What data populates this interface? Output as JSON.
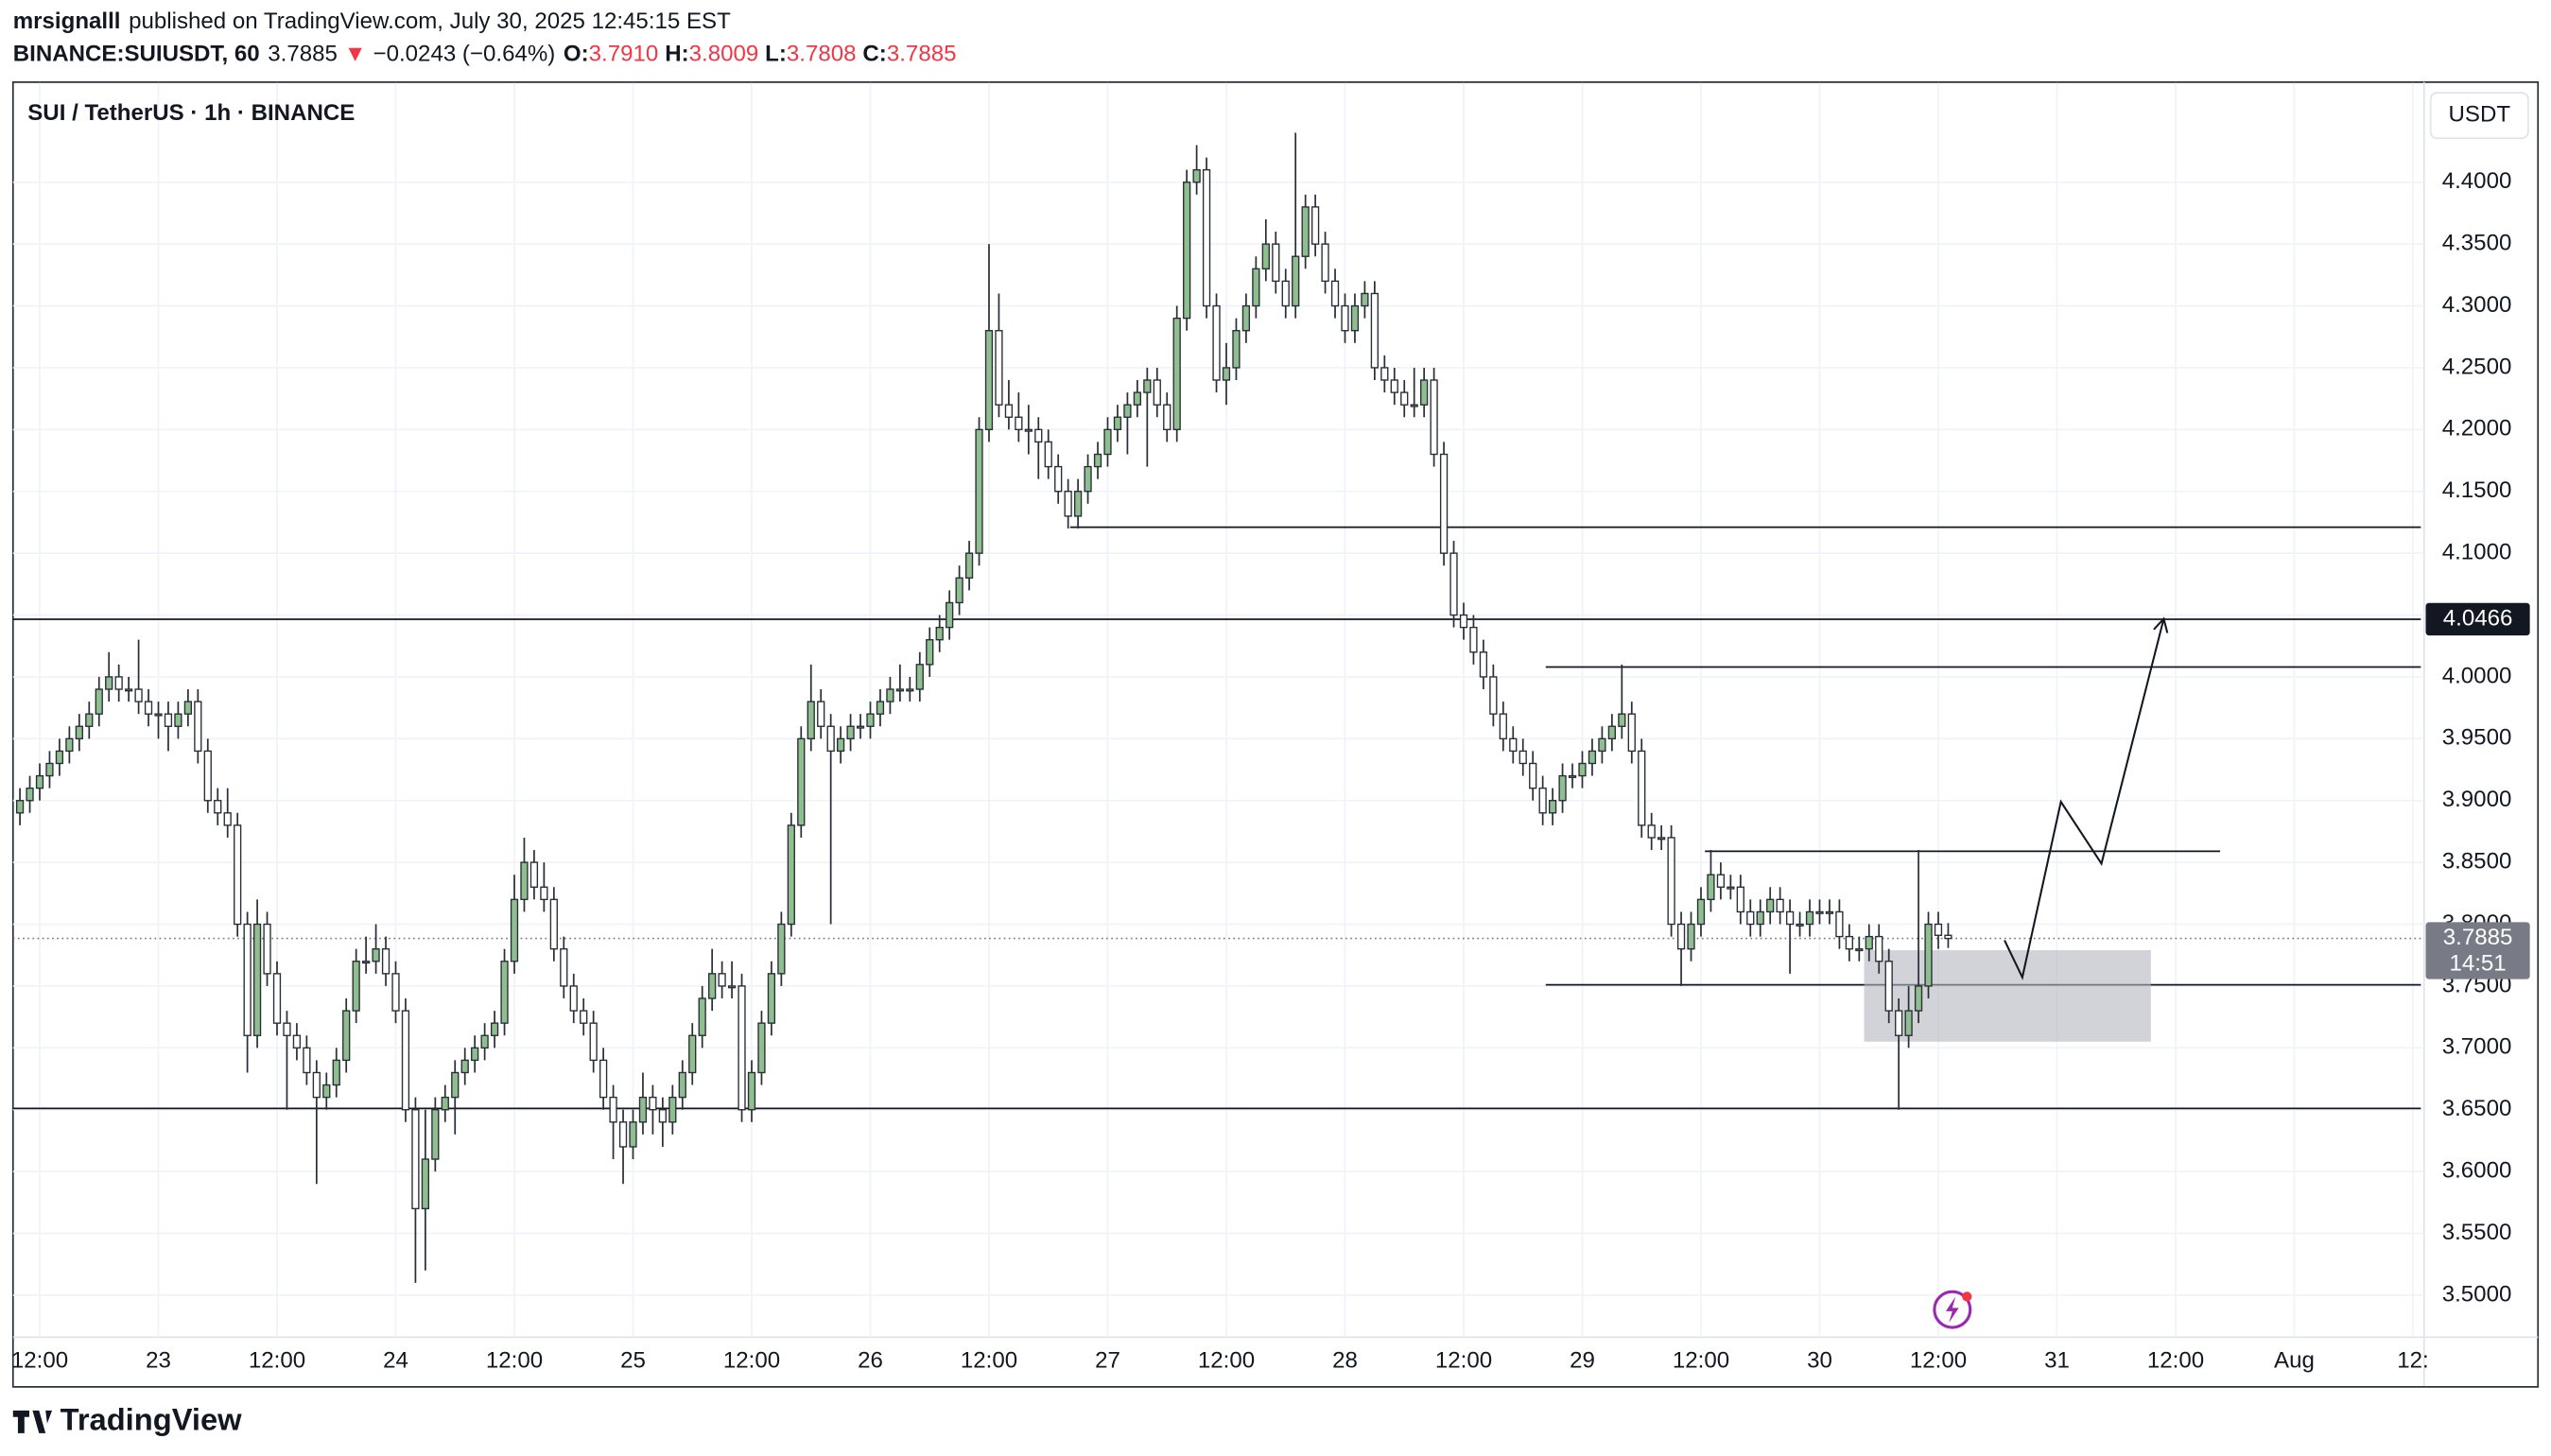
{
  "header": {
    "author": "mrsignalll",
    "published": "published on TradingView.com, July 30, 2025 12:45:15 EST",
    "symbol": "BINANCE:SUIUSDT, 60",
    "last": "3.7885",
    "arrow": "▼",
    "change": "−0.0243 (−0.64%)",
    "o_label": "O:",
    "o": "3.7910",
    "h_label": "H:",
    "h": "3.8009",
    "l_label": "L:",
    "l": "3.7808",
    "c_label": "C:",
    "c": "3.7885"
  },
  "brand": "TradingView",
  "chart_data": {
    "type": "candlestick",
    "title": "SUI / TetherUS · 1h · BINANCE",
    "currency": "USDT",
    "countdown": "14:51",
    "up_color": "#8fbf8f",
    "down_color": "#ffffff",
    "wick_color": "#2a2e39",
    "ylim": [
      3.466,
      4.475
    ],
    "yticks": [
      {
        "value": 3.5,
        "label": "3.5000"
      },
      {
        "value": 3.55,
        "label": "3.5500"
      },
      {
        "value": 3.6,
        "label": "3.6000"
      },
      {
        "value": 3.65,
        "label": "3.6500"
      },
      {
        "value": 3.7,
        "label": "3.7000"
      },
      {
        "value": 3.75,
        "label": "3.7500"
      },
      {
        "value": 3.8,
        "label": "3.8000"
      },
      {
        "value": 3.85,
        "label": "3.8500"
      },
      {
        "value": 3.9,
        "label": "3.9000"
      },
      {
        "value": 3.95,
        "label": "3.9500"
      },
      {
        "value": 4.0,
        "label": "4.0000"
      },
      {
        "value": 4.05,
        "label": "4.0500"
      },
      {
        "value": 4.1,
        "label": "4.1000"
      },
      {
        "value": 4.15,
        "label": "4.1500"
      },
      {
        "value": 4.2,
        "label": "4.2000"
      },
      {
        "value": 4.25,
        "label": "4.2500"
      },
      {
        "value": 4.3,
        "label": "4.3000"
      },
      {
        "value": 4.35,
        "label": "4.3500"
      },
      {
        "value": 4.4,
        "label": "4.4000"
      }
    ],
    "xlim": [
      -0.7,
      242.8
    ],
    "xticks": [
      {
        "value": 2,
        "label": "12:00"
      },
      {
        "value": 14,
        "label": "23"
      },
      {
        "value": 26,
        "label": "12:00"
      },
      {
        "value": 38,
        "label": "24"
      },
      {
        "value": 50,
        "label": "12:00"
      },
      {
        "value": 62,
        "label": "25"
      },
      {
        "value": 74,
        "label": "12:00"
      },
      {
        "value": 86,
        "label": "26"
      },
      {
        "value": 98,
        "label": "12:00"
      },
      {
        "value": 110,
        "label": "27"
      },
      {
        "value": 122,
        "label": "12:00"
      },
      {
        "value": 134,
        "label": "28"
      },
      {
        "value": 146,
        "label": "12:00"
      },
      {
        "value": 158,
        "label": "29"
      },
      {
        "value": 170,
        "label": "12:00"
      },
      {
        "value": 182,
        "label": "30"
      },
      {
        "value": 194,
        "label": "12:00"
      },
      {
        "value": 206,
        "label": "31"
      },
      {
        "value": 218,
        "label": "12:00"
      },
      {
        "value": 230,
        "label": "Aug"
      },
      {
        "value": 242,
        "label": "12:"
      }
    ],
    "grid": true,
    "last_price": 3.7885,
    "marked_price": 4.0466,
    "hlines": [
      {
        "price": 4.121,
        "x0": 106.2,
        "x1": 242.8
      },
      {
        "price": 4.0466,
        "x0": -0.7,
        "x1": 242.8
      },
      {
        "price": 4.008,
        "x0": 154.3,
        "x1": 242.8
      },
      {
        "price": 3.859,
        "x0": 170.4,
        "x1": 222.5
      },
      {
        "price": 3.751,
        "x0": 154.3,
        "x1": 242.8
      },
      {
        "price": 3.651,
        "x0": -0.7,
        "x1": 242.8
      }
    ],
    "zone": {
      "top": 3.779,
      "bottom": 3.705,
      "x0": 186.5,
      "x1": 215.5
    },
    "projection": {
      "x": [
        200.7,
        202.5,
        206.4,
        210.5,
        216.8
      ],
      "y": [
        3.787,
        3.757,
        3.899,
        3.849,
        4.047
      ]
    },
    "ohlc": [
      [
        3.89,
        3.91,
        3.88,
        3.9
      ],
      [
        3.9,
        3.92,
        3.89,
        3.91
      ],
      [
        3.91,
        3.93,
        3.9,
        3.92
      ],
      [
        3.92,
        3.94,
        3.91,
        3.93
      ],
      [
        3.93,
        3.95,
        3.92,
        3.94
      ],
      [
        3.94,
        3.96,
        3.93,
        3.95
      ],
      [
        3.95,
        3.97,
        3.94,
        3.96
      ],
      [
        3.96,
        3.98,
        3.95,
        3.97
      ],
      [
        3.97,
        4.0,
        3.96,
        3.99
      ],
      [
        3.99,
        4.02,
        3.98,
        4.0
      ],
      [
        4.0,
        4.01,
        3.98,
        3.99
      ],
      [
        3.99,
        4.0,
        3.98,
        3.99
      ],
      [
        3.99,
        4.03,
        3.97,
        3.98
      ],
      [
        3.98,
        3.99,
        3.96,
        3.97
      ],
      [
        3.97,
        3.98,
        3.95,
        3.97
      ],
      [
        3.97,
        3.98,
        3.94,
        3.96
      ],
      [
        3.96,
        3.98,
        3.95,
        3.97
      ],
      [
        3.97,
        3.99,
        3.96,
        3.98
      ],
      [
        3.98,
        3.99,
        3.93,
        3.94
      ],
      [
        3.94,
        3.95,
        3.89,
        3.9
      ],
      [
        3.9,
        3.91,
        3.88,
        3.89
      ],
      [
        3.89,
        3.91,
        3.87,
        3.88
      ],
      [
        3.88,
        3.89,
        3.79,
        3.8
      ],
      [
        3.8,
        3.81,
        3.68,
        3.71
      ],
      [
        3.71,
        3.82,
        3.7,
        3.8
      ],
      [
        3.8,
        3.81,
        3.75,
        3.76
      ],
      [
        3.76,
        3.77,
        3.71,
        3.72
      ],
      [
        3.72,
        3.73,
        3.65,
        3.71
      ],
      [
        3.71,
        3.72,
        3.69,
        3.7
      ],
      [
        3.7,
        3.71,
        3.67,
        3.68
      ],
      [
        3.68,
        3.69,
        3.59,
        3.66
      ],
      [
        3.66,
        3.68,
        3.65,
        3.67
      ],
      [
        3.67,
        3.7,
        3.66,
        3.69
      ],
      [
        3.69,
        3.74,
        3.68,
        3.73
      ],
      [
        3.73,
        3.78,
        3.72,
        3.77
      ],
      [
        3.77,
        3.79,
        3.76,
        3.77
      ],
      [
        3.77,
        3.8,
        3.76,
        3.78
      ],
      [
        3.78,
        3.79,
        3.75,
        3.76
      ],
      [
        3.76,
        3.77,
        3.72,
        3.73
      ],
      [
        3.73,
        3.74,
        3.64,
        3.65
      ],
      [
        3.65,
        3.66,
        3.51,
        3.57
      ],
      [
        3.57,
        3.65,
        3.52,
        3.61
      ],
      [
        3.61,
        3.66,
        3.6,
        3.65
      ],
      [
        3.65,
        3.67,
        3.64,
        3.66
      ],
      [
        3.66,
        3.69,
        3.63,
        3.68
      ],
      [
        3.68,
        3.7,
        3.67,
        3.69
      ],
      [
        3.69,
        3.71,
        3.68,
        3.7
      ],
      [
        3.7,
        3.72,
        3.69,
        3.71
      ],
      [
        3.71,
        3.73,
        3.7,
        3.72
      ],
      [
        3.72,
        3.78,
        3.71,
        3.77
      ],
      [
        3.77,
        3.84,
        3.76,
        3.82
      ],
      [
        3.82,
        3.87,
        3.81,
        3.85
      ],
      [
        3.85,
        3.86,
        3.82,
        3.83
      ],
      [
        3.83,
        3.85,
        3.81,
        3.82
      ],
      [
        3.82,
        3.83,
        3.77,
        3.78
      ],
      [
        3.78,
        3.79,
        3.74,
        3.75
      ],
      [
        3.75,
        3.76,
        3.72,
        3.73
      ],
      [
        3.73,
        3.74,
        3.71,
        3.72
      ],
      [
        3.72,
        3.73,
        3.68,
        3.69
      ],
      [
        3.69,
        3.7,
        3.65,
        3.66
      ],
      [
        3.66,
        3.67,
        3.61,
        3.64
      ],
      [
        3.64,
        3.65,
        3.59,
        3.62
      ],
      [
        3.62,
        3.65,
        3.61,
        3.64
      ],
      [
        3.64,
        3.68,
        3.63,
        3.66
      ],
      [
        3.66,
        3.67,
        3.63,
        3.65
      ],
      [
        3.65,
        3.66,
        3.62,
        3.64
      ],
      [
        3.64,
        3.67,
        3.63,
        3.66
      ],
      [
        3.66,
        3.69,
        3.65,
        3.68
      ],
      [
        3.68,
        3.72,
        3.67,
        3.71
      ],
      [
        3.71,
        3.75,
        3.7,
        3.74
      ],
      [
        3.74,
        3.78,
        3.73,
        3.76
      ],
      [
        3.76,
        3.77,
        3.74,
        3.75
      ],
      [
        3.75,
        3.77,
        3.74,
        3.75
      ],
      [
        3.75,
        3.76,
        3.64,
        3.65
      ],
      [
        3.65,
        3.69,
        3.64,
        3.68
      ],
      [
        3.68,
        3.73,
        3.67,
        3.72
      ],
      [
        3.72,
        3.77,
        3.71,
        3.76
      ],
      [
        3.76,
        3.81,
        3.75,
        3.8
      ],
      [
        3.8,
        3.89,
        3.79,
        3.88
      ],
      [
        3.88,
        3.96,
        3.87,
        3.95
      ],
      [
        3.95,
        4.01,
        3.94,
        3.98
      ],
      [
        3.98,
        3.99,
        3.95,
        3.96
      ],
      [
        3.96,
        3.97,
        3.8,
        3.94
      ],
      [
        3.94,
        3.96,
        3.93,
        3.95
      ],
      [
        3.95,
        3.97,
        3.94,
        3.96
      ],
      [
        3.96,
        3.97,
        3.95,
        3.96
      ],
      [
        3.96,
        3.98,
        3.95,
        3.97
      ],
      [
        3.97,
        3.99,
        3.96,
        3.98
      ],
      [
        3.98,
        4.0,
        3.97,
        3.99
      ],
      [
        3.99,
        4.01,
        3.98,
        3.99
      ],
      [
        3.99,
        4.0,
        3.98,
        3.99
      ],
      [
        3.99,
        4.02,
        3.98,
        4.01
      ],
      [
        4.01,
        4.04,
        4.0,
        4.03
      ],
      [
        4.03,
        4.05,
        4.02,
        4.04
      ],
      [
        4.04,
        4.07,
        4.03,
        4.06
      ],
      [
        4.06,
        4.09,
        4.05,
        4.08
      ],
      [
        4.08,
        4.11,
        4.07,
        4.1
      ],
      [
        4.1,
        4.21,
        4.09,
        4.2
      ],
      [
        4.2,
        4.35,
        4.19,
        4.28
      ],
      [
        4.28,
        4.31,
        4.21,
        4.22
      ],
      [
        4.22,
        4.24,
        4.2,
        4.21
      ],
      [
        4.21,
        4.23,
        4.19,
        4.2
      ],
      [
        4.2,
        4.22,
        4.18,
        4.2
      ],
      [
        4.2,
        4.21,
        4.16,
        4.19
      ],
      [
        4.19,
        4.2,
        4.16,
        4.17
      ],
      [
        4.17,
        4.18,
        4.14,
        4.15
      ],
      [
        4.15,
        4.16,
        4.12,
        4.13
      ],
      [
        4.13,
        4.16,
        4.12,
        4.15
      ],
      [
        4.15,
        4.18,
        4.14,
        4.17
      ],
      [
        4.17,
        4.19,
        4.16,
        4.18
      ],
      [
        4.18,
        4.21,
        4.17,
        4.2
      ],
      [
        4.2,
        4.22,
        4.19,
        4.21
      ],
      [
        4.21,
        4.23,
        4.18,
        4.22
      ],
      [
        4.22,
        4.24,
        4.21,
        4.23
      ],
      [
        4.23,
        4.25,
        4.17,
        4.24
      ],
      [
        4.24,
        4.25,
        4.21,
        4.22
      ],
      [
        4.22,
        4.23,
        4.19,
        4.2
      ],
      [
        4.2,
        4.3,
        4.19,
        4.29
      ],
      [
        4.29,
        4.41,
        4.28,
        4.4
      ],
      [
        4.4,
        4.43,
        4.39,
        4.41
      ],
      [
        4.41,
        4.42,
        4.29,
        4.3
      ],
      [
        4.3,
        4.31,
        4.23,
        4.24
      ],
      [
        4.24,
        4.27,
        4.22,
        4.25
      ],
      [
        4.25,
        4.29,
        4.24,
        4.28
      ],
      [
        4.28,
        4.31,
        4.27,
        4.3
      ],
      [
        4.3,
        4.34,
        4.29,
        4.33
      ],
      [
        4.33,
        4.37,
        4.32,
        4.35
      ],
      [
        4.35,
        4.36,
        4.31,
        4.32
      ],
      [
        4.32,
        4.33,
        4.29,
        4.3
      ],
      [
        4.3,
        4.44,
        4.29,
        4.34
      ],
      [
        4.34,
        4.39,
        4.33,
        4.38
      ],
      [
        4.38,
        4.39,
        4.34,
        4.35
      ],
      [
        4.35,
        4.36,
        4.31,
        4.32
      ],
      [
        4.32,
        4.33,
        4.29,
        4.3
      ],
      [
        4.3,
        4.31,
        4.27,
        4.28
      ],
      [
        4.28,
        4.31,
        4.27,
        4.3
      ],
      [
        4.3,
        4.32,
        4.29,
        4.31
      ],
      [
        4.31,
        4.32,
        4.24,
        4.25
      ],
      [
        4.25,
        4.26,
        4.23,
        4.24
      ],
      [
        4.24,
        4.25,
        4.22,
        4.23
      ],
      [
        4.23,
        4.24,
        4.21,
        4.22
      ],
      [
        4.22,
        4.25,
        4.21,
        4.22
      ],
      [
        4.22,
        4.25,
        4.21,
        4.24
      ],
      [
        4.24,
        4.25,
        4.17,
        4.18
      ],
      [
        4.18,
        4.19,
        4.09,
        4.1
      ],
      [
        4.1,
        4.11,
        4.04,
        4.05
      ],
      [
        4.05,
        4.06,
        4.03,
        4.04
      ],
      [
        4.04,
        4.05,
        4.01,
        4.02
      ],
      [
        4.02,
        4.03,
        3.99,
        4.0
      ],
      [
        4.0,
        4.01,
        3.96,
        3.97
      ],
      [
        3.97,
        3.98,
        3.94,
        3.95
      ],
      [
        3.95,
        3.96,
        3.93,
        3.94
      ],
      [
        3.94,
        3.95,
        3.92,
        3.93
      ],
      [
        3.93,
        3.94,
        3.9,
        3.91
      ],
      [
        3.91,
        3.92,
        3.88,
        3.89
      ],
      [
        3.89,
        3.91,
        3.88,
        3.9
      ],
      [
        3.9,
        3.93,
        3.89,
        3.92
      ],
      [
        3.92,
        3.93,
        3.91,
        3.92
      ],
      [
        3.92,
        3.94,
        3.91,
        3.93
      ],
      [
        3.93,
        3.95,
        3.92,
        3.94
      ],
      [
        3.94,
        3.96,
        3.93,
        3.95
      ],
      [
        3.95,
        3.97,
        3.94,
        3.96
      ],
      [
        3.96,
        4.01,
        3.95,
        3.97
      ],
      [
        3.97,
        3.98,
        3.93,
        3.94
      ],
      [
        3.94,
        3.95,
        3.87,
        3.88
      ],
      [
        3.88,
        3.89,
        3.86,
        3.87
      ],
      [
        3.87,
        3.88,
        3.86,
        3.87
      ],
      [
        3.87,
        3.88,
        3.79,
        3.8
      ],
      [
        3.8,
        3.81,
        3.75,
        3.78
      ],
      [
        3.78,
        3.81,
        3.77,
        3.8
      ],
      [
        3.8,
        3.83,
        3.79,
        3.82
      ],
      [
        3.82,
        3.86,
        3.81,
        3.84
      ],
      [
        3.84,
        3.85,
        3.82,
        3.83
      ],
      [
        3.83,
        3.84,
        3.82,
        3.83
      ],
      [
        3.83,
        3.84,
        3.8,
        3.81
      ],
      [
        3.81,
        3.82,
        3.79,
        3.8
      ],
      [
        3.8,
        3.82,
        3.79,
        3.81
      ],
      [
        3.81,
        3.83,
        3.8,
        3.82
      ],
      [
        3.82,
        3.83,
        3.8,
        3.81
      ],
      [
        3.81,
        3.82,
        3.76,
        3.8
      ],
      [
        3.8,
        3.81,
        3.79,
        3.8
      ],
      [
        3.8,
        3.82,
        3.79,
        3.81
      ],
      [
        3.81,
        3.82,
        3.8,
        3.81
      ],
      [
        3.81,
        3.82,
        3.8,
        3.81
      ],
      [
        3.81,
        3.82,
        3.78,
        3.79
      ],
      [
        3.79,
        3.8,
        3.77,
        3.78
      ],
      [
        3.78,
        3.79,
        3.77,
        3.78
      ],
      [
        3.78,
        3.8,
        3.77,
        3.79
      ],
      [
        3.79,
        3.8,
        3.76,
        3.77
      ],
      [
        3.77,
        3.78,
        3.72,
        3.73
      ],
      [
        3.73,
        3.74,
        3.65,
        3.71
      ],
      [
        3.71,
        3.75,
        3.7,
        3.73
      ],
      [
        3.73,
        3.86,
        3.72,
        3.75
      ],
      [
        3.75,
        3.81,
        3.74,
        3.8
      ],
      [
        3.8,
        3.81,
        3.78,
        3.791
      ],
      [
        3.791,
        3.8009,
        3.7808,
        3.7885
      ]
    ]
  }
}
